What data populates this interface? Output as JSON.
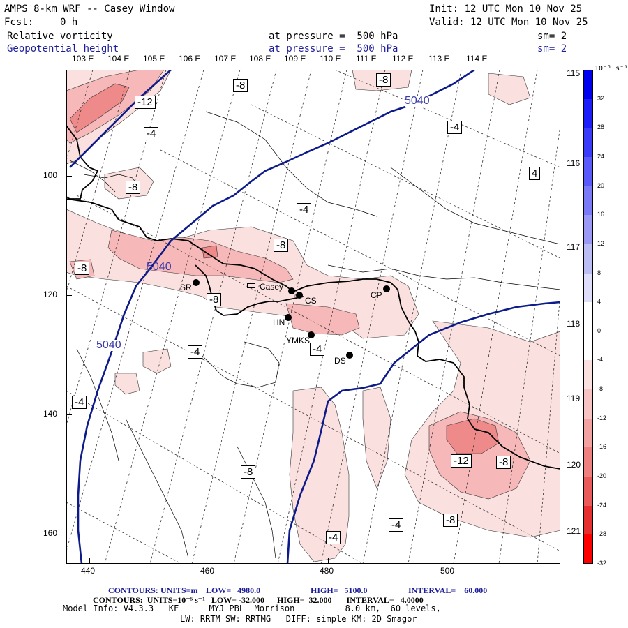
{
  "header": {
    "title": "AMPS 8-km WRF -- Casey Window",
    "fcst_label": "Fcst:",
    "fcst_value": "0 h",
    "init": "Init: 12 UTC Mon 10 Nov 25",
    "valid": "Valid: 12 UTC Mon 10 Nov 25",
    "field1": {
      "name": "Relative vorticity",
      "level": "at pressure =  500 hPa",
      "sm": "sm= 2"
    },
    "field2": {
      "name": "Geopotential height",
      "level": "at pressure =  500 hPa",
      "sm": "sm= 2"
    }
  },
  "top_lon_labels": [
    "103 E",
    "104 E",
    "105 E",
    "106 E",
    "107 E",
    "108 E",
    "109 E",
    "110 E",
    "111 E",
    "112 E",
    "113 E",
    "114 E"
  ],
  "right_lon_labels": [
    "115 E",
    "116 E",
    "117 E",
    "118 E",
    "119 E",
    "120 E",
    "121 E"
  ],
  "x_ticks": [
    "440",
    "460",
    "480",
    "500"
  ],
  "y_ticks": [
    "100",
    "120",
    "140",
    "160"
  ],
  "colorbar": {
    "units": "10⁻⁵ s⁻¹",
    "labels": [
      "32",
      "28",
      "24",
      "20",
      "16",
      "12",
      "8",
      "4",
      "0",
      "-4",
      "-8",
      "-12",
      "-16",
      "-20",
      "-24",
      "-28",
      "-32"
    ],
    "colors": [
      "#0000ee",
      "#1d1dfa",
      "#3a3afb",
      "#5a5afa",
      "#7a7af8",
      "#9a9af6",
      "#bdbdf6",
      "#dedefa",
      "#ffffff",
      "#ffffff",
      "#fbe0e0",
      "#f7c3c3",
      "#f3a2a2",
      "#ef8080",
      "#ea5a5a",
      "#e63030",
      "#ff0000"
    ]
  },
  "height_labels": [
    "5040",
    "5040",
    "5040"
  ],
  "vort_labels": [
    "-12",
    "-8",
    "-8",
    "-4",
    "-8",
    "-4",
    "-8",
    "-8",
    "-8",
    "-4",
    "-4",
    "-4",
    "-4",
    "4",
    "-12",
    "-8",
    "-8",
    "-4",
    "-8",
    "-4"
  ],
  "stations": [
    {
      "code": "SR"
    },
    {
      "code": "Casey"
    },
    {
      "code": "CS"
    },
    {
      "code": "CP"
    },
    {
      "code": "HN"
    },
    {
      "code": "YMKS"
    },
    {
      "code": "DS"
    }
  ],
  "footer": {
    "line1_contours": "CONTOURS:",
    "line1_units": "UNITS=m",
    "line1_low": "LOW=   4980.0",
    "line1_high": "HIGH=   5100.0",
    "line1_interval": "INTERVAL=    60.000",
    "line2": "CONTOURS:  UNITS=10⁻⁵ s⁻¹   LOW= -32.000      HIGH=  32.000       INTERVAL=   4.0000",
    "line3": "Model Info: V4.3.3   KF      MYJ PBL  Morrison          8.0 km,  60 levels,",
    "line4": "LW: RRTM SW: RRTMG   DIFF: simple KM: 2D Smagor"
  },
  "colors": {
    "height_line": "#0d1a8a",
    "coast": "#000000",
    "shade_light": "#fbe0e0",
    "shade_mid": "#f6b8b8",
    "shade_dark": "#ef8a8a"
  }
}
